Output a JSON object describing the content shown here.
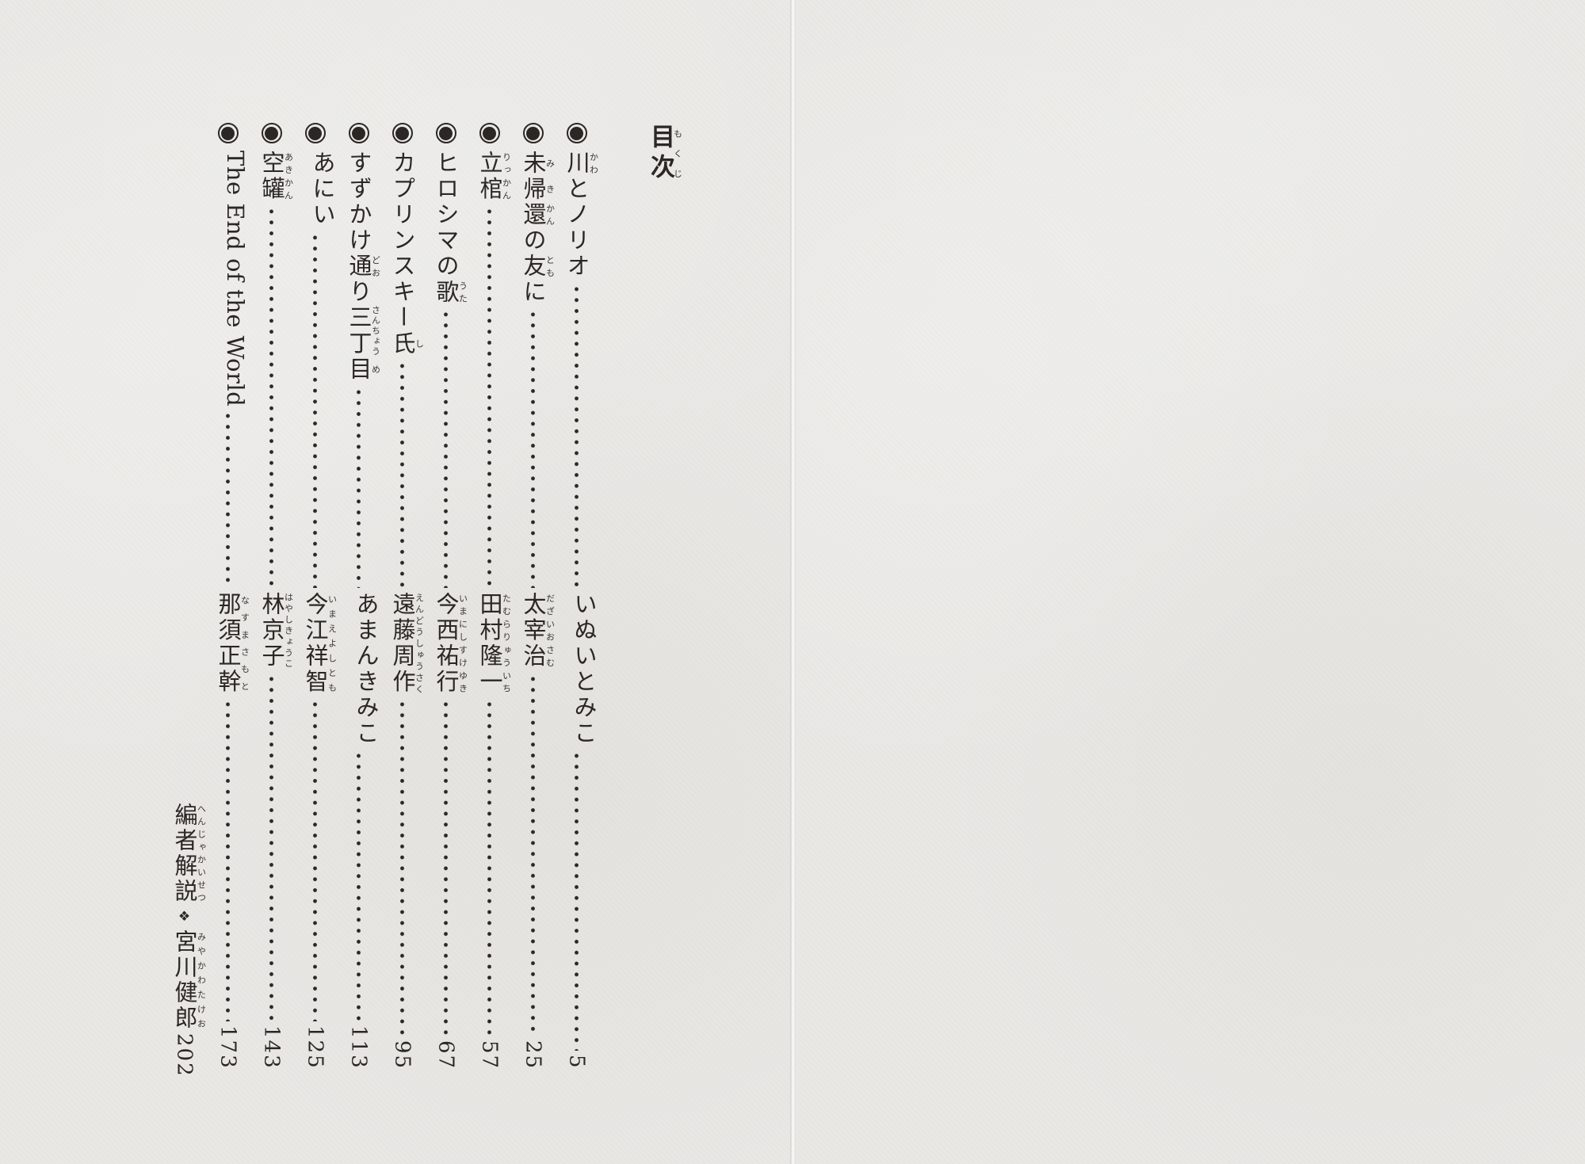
{
  "paper_color": "#e9e8e5",
  "ink_color": "#2b2724",
  "toc": {
    "header": {
      "segments": [
        [
          "目次",
          "もくじ"
        ]
      ]
    },
    "marker_icon": "fisheye-bullet",
    "entries": [
      {
        "title": [
          [
            "川",
            "かわ"
          ],
          [
            "とノリオ",
            ""
          ]
        ],
        "author": [
          [
            "いぬいとみこ",
            ""
          ]
        ],
        "page": "5"
      },
      {
        "title": [
          [
            "未",
            "み"
          ],
          [
            "帰",
            "き"
          ],
          [
            "還",
            "かん"
          ],
          [
            "の",
            ""
          ],
          [
            "友",
            "とも"
          ],
          [
            "に",
            ""
          ]
        ],
        "author": [
          [
            "太宰治",
            "だざいおさむ"
          ]
        ],
        "page": "25"
      },
      {
        "title": [
          [
            "立棺",
            "りっかん"
          ]
        ],
        "author": [
          [
            "田村隆一",
            "たむらりゅういち"
          ]
        ],
        "page": "57"
      },
      {
        "title": [
          [
            "ヒロシマの",
            ""
          ],
          [
            "歌",
            "うた"
          ]
        ],
        "author": [
          [
            "今西祐行",
            "いまにしすけゆき"
          ]
        ],
        "page": "67"
      },
      {
        "title": [
          [
            "カプリンスキー",
            ""
          ],
          [
            "氏",
            "し"
          ]
        ],
        "author": [
          [
            "遠藤周作",
            "えんどうしゅうさく"
          ]
        ],
        "page": "95"
      },
      {
        "title": [
          [
            "すずかけ",
            ""
          ],
          [
            "通",
            "どお"
          ],
          [
            "り",
            ""
          ],
          [
            "三丁",
            "さんちょう"
          ],
          [
            "目",
            "め"
          ]
        ],
        "author": [
          [
            "あまんきみこ",
            ""
          ]
        ],
        "page": "113"
      },
      {
        "title": [
          [
            "あにい",
            ""
          ]
        ],
        "author": [
          [
            "今江祥智",
            "いまえよしとも"
          ]
        ],
        "page": "125"
      },
      {
        "title": [
          [
            "空罐",
            "あきかん"
          ]
        ],
        "author": [
          [
            "林京子",
            "はやしきょうこ"
          ]
        ],
        "page": "143"
      },
      {
        "title": [
          [
            "The End of the World",
            ""
          ]
        ],
        "author": [
          [
            "那須正幹",
            "なすまさもと"
          ]
        ],
        "page": "173"
      }
    ],
    "closing_entry": {
      "label": [
        [
          "編者解説",
          "へんじゃかいせつ"
        ]
      ],
      "separator": "❖",
      "editor": [
        [
          "宮川健郎",
          "みやかわたけお"
        ]
      ],
      "page": "202"
    }
  }
}
